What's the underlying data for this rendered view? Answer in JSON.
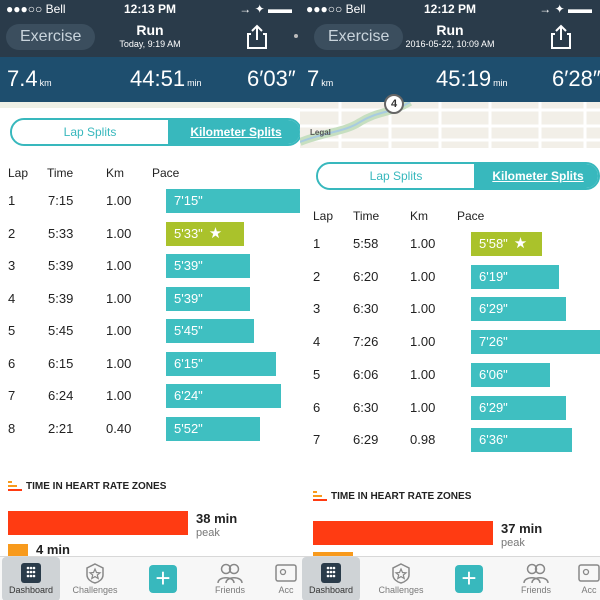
{
  "panes": [
    {
      "status": {
        "carrier": "●●●○○ Bell",
        "time": "12:13 PM",
        "right": "→ ✦ ▬▬"
      },
      "header": {
        "back_label": "Exercise",
        "title": "Run",
        "subtitle": "Today, 9:19 AM"
      },
      "stats": {
        "distance": "7.4",
        "distance_unit": "km",
        "duration": "44:51",
        "duration_unit": "min",
        "pace": "6′03″"
      },
      "tabs": {
        "active": "Lap Splits",
        "inactive": "Kilometer Splits"
      },
      "table": {
        "headers": [
          "Lap",
          "Time",
          "Km",
          "Pace"
        ],
        "rows": [
          {
            "lap": "1",
            "time": "7:15",
            "km": "1.00",
            "pace": "7'15\"",
            "best": false,
            "fraction": 1.0
          },
          {
            "lap": "2",
            "time": "5:33",
            "km": "1.00",
            "pace": "5'33\"",
            "best": true,
            "fraction": 0.58
          },
          {
            "lap": "3",
            "time": "5:39",
            "km": "1.00",
            "pace": "5'39\"",
            "best": false,
            "fraction": 0.63
          },
          {
            "lap": "4",
            "time": "5:39",
            "km": "1.00",
            "pace": "5'39\"",
            "best": false,
            "fraction": 0.63
          },
          {
            "lap": "5",
            "time": "5:45",
            "km": "1.00",
            "pace": "5'45\"",
            "best": false,
            "fraction": 0.66
          },
          {
            "lap": "6",
            "time": "6:15",
            "km": "1.00",
            "pace": "6'15\"",
            "best": false,
            "fraction": 0.82
          },
          {
            "lap": "7",
            "time": "6:24",
            "km": "1.00",
            "pace": "6'24\"",
            "best": false,
            "fraction": 0.86
          },
          {
            "lap": "8",
            "time": "2:21",
            "km": "0.40",
            "pace": "5'52\"",
            "best": false,
            "fraction": 0.7
          }
        ]
      },
      "heart_rate": {
        "title": "TIME IN HEART RATE ZONES",
        "zone1_value": "38 min",
        "zone1_label": "peak",
        "zone2_value": "4 min"
      },
      "tabbar": [
        "Dashboard",
        "Challenges",
        "Friends",
        "Acc"
      ]
    },
    {
      "status": {
        "carrier": "●●●○○ Bell",
        "time": "12:12 PM",
        "right": "→ ✦ ▬▬"
      },
      "header": {
        "back_label": "Exercise",
        "title": "Run",
        "subtitle": "2016-05-22, 10:09 AM"
      },
      "stats": {
        "distance": "7",
        "distance_unit": "km",
        "duration": "45:19",
        "duration_unit": "min",
        "pace": "6′28″"
      },
      "map": {
        "legal": "Legal",
        "marker": "4"
      },
      "tabs": {
        "active": "Lap Splits",
        "inactive": "Kilometer Splits"
      },
      "table": {
        "headers": [
          "Lap",
          "Time",
          "Km",
          "Pace"
        ],
        "rows": [
          {
            "lap": "1",
            "time": "5:58",
            "km": "1.00",
            "pace": "5'58\"",
            "best": true,
            "fraction": 0.55
          },
          {
            "lap": "2",
            "time": "6:20",
            "km": "1.00",
            "pace": "6'19\"",
            "best": false,
            "fraction": 0.68
          },
          {
            "lap": "3",
            "time": "6:30",
            "km": "1.00",
            "pace": "6'29\"",
            "best": false,
            "fraction": 0.74
          },
          {
            "lap": "4",
            "time": "7:26",
            "km": "1.00",
            "pace": "7'26\"",
            "best": false,
            "fraction": 1.0
          },
          {
            "lap": "5",
            "time": "6:06",
            "km": "1.00",
            "pace": "6'06\"",
            "best": false,
            "fraction": 0.61
          },
          {
            "lap": "6",
            "time": "6:30",
            "km": "1.00",
            "pace": "6'29\"",
            "best": false,
            "fraction": 0.74
          },
          {
            "lap": "7",
            "time": "6:29",
            "km": "0.98",
            "pace": "6'36\"",
            "best": false,
            "fraction": 0.78
          }
        ]
      },
      "heart_rate": {
        "title": "TIME IN HEART RATE ZONES",
        "zone1_value": "37 min",
        "zone1_label": "peak",
        "zone2_value": ""
      },
      "tabbar": [
        "Dashboard",
        "Challenges",
        "Friends",
        "Acc"
      ]
    }
  ],
  "colors": {
    "header": "#2a3b4a",
    "stats": "#1e4e6e",
    "accent": "#3fbfc1",
    "best": "#aac22b",
    "zone_peak": "#ff3b12",
    "zone_cardio": "#f89a1c"
  }
}
